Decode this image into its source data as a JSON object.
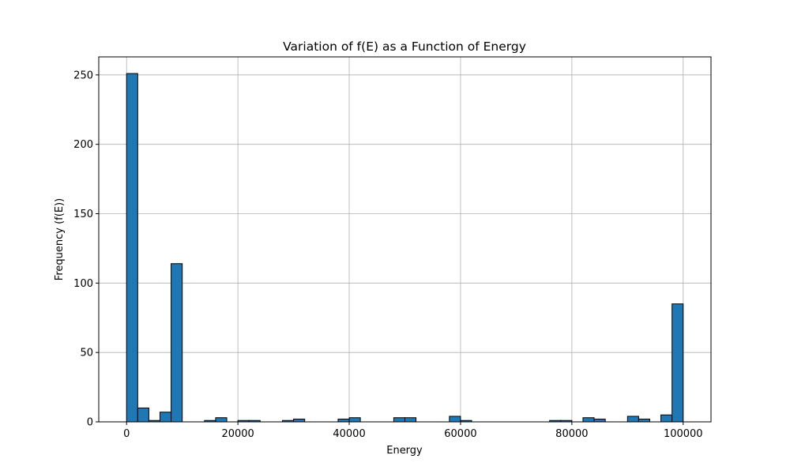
{
  "chart_data": {
    "type": "bar",
    "title": "Variation of f(E) as a Function of Energy",
    "xlabel": "Energy",
    "ylabel": "Frequency (f(E))",
    "xlim": [
      -5000,
      105000
    ],
    "ylim": [
      0,
      263
    ],
    "xticks": [
      0,
      20000,
      40000,
      60000,
      80000,
      100000
    ],
    "yticks": [
      0,
      50,
      100,
      150,
      200,
      250
    ],
    "grid": true,
    "bar_color": "#1f77b4",
    "edge_color": "#000000",
    "bin_width": 2000,
    "bins": [
      {
        "x": 0,
        "value": 251
      },
      {
        "x": 2000,
        "value": 10
      },
      {
        "x": 4000,
        "value": 1
      },
      {
        "x": 6000,
        "value": 7
      },
      {
        "x": 8000,
        "value": 114
      },
      {
        "x": 14000,
        "value": 1
      },
      {
        "x": 16000,
        "value": 3
      },
      {
        "x": 20000,
        "value": 1
      },
      {
        "x": 22000,
        "value": 1
      },
      {
        "x": 28000,
        "value": 1
      },
      {
        "x": 30000,
        "value": 2
      },
      {
        "x": 38000,
        "value": 2
      },
      {
        "x": 40000,
        "value": 3
      },
      {
        "x": 48000,
        "value": 3
      },
      {
        "x": 50000,
        "value": 3
      },
      {
        "x": 58000,
        "value": 4
      },
      {
        "x": 60000,
        "value": 1
      },
      {
        "x": 76000,
        "value": 1
      },
      {
        "x": 78000,
        "value": 1
      },
      {
        "x": 82000,
        "value": 3
      },
      {
        "x": 84000,
        "value": 2
      },
      {
        "x": 90000,
        "value": 4
      },
      {
        "x": 92000,
        "value": 2
      },
      {
        "x": 96000,
        "value": 5
      },
      {
        "x": 98000,
        "value": 85
      }
    ]
  }
}
